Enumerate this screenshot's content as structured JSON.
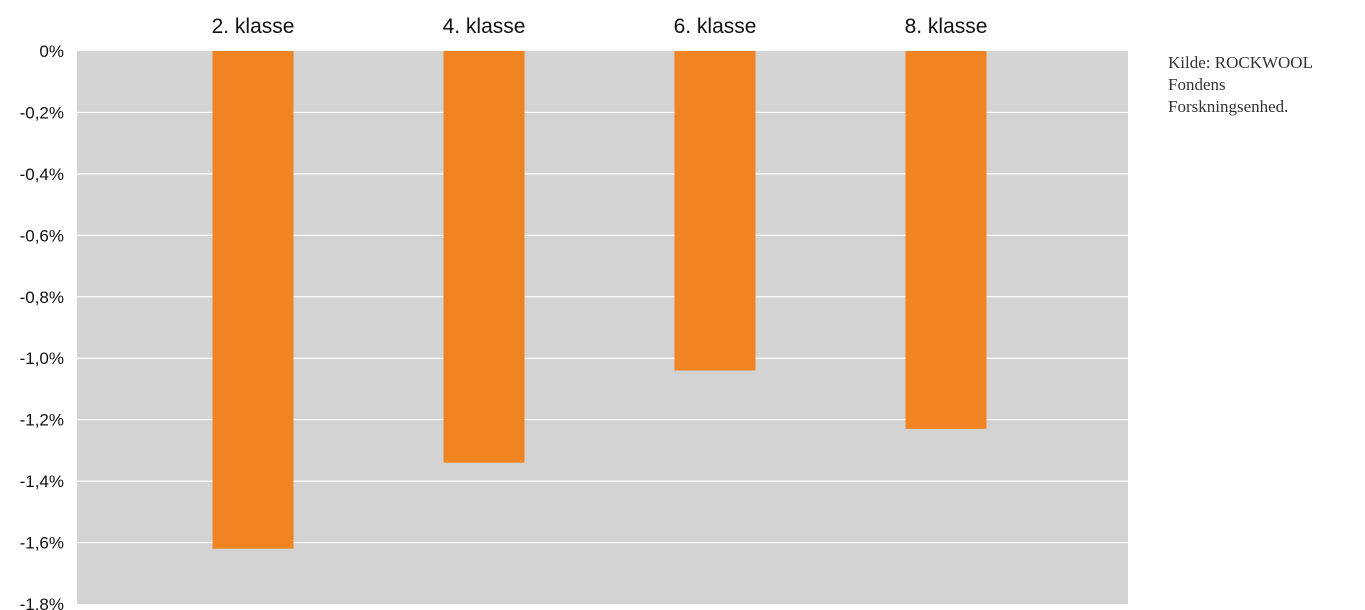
{
  "chart_data": {
    "type": "bar",
    "categories": [
      "2. klasse",
      "4. klasse",
      "6. klasse",
      "8. klasse"
    ],
    "values": [
      -1.62,
      -1.34,
      -1.04,
      -1.23
    ],
    "yticks": [
      0,
      -0.2,
      -0.4,
      -0.6,
      -0.8,
      -1.0,
      -1.2,
      -1.4,
      -1.6,
      -1.8
    ],
    "ytick_labels": [
      "0%",
      "-0,2%",
      "-0,4%",
      "-0,6%",
      "-0,8%",
      "-1,0%",
      "-1,2%",
      "-1,4%",
      "-1,6%",
      "-1,8%"
    ],
    "ylim": [
      -1.8,
      0
    ],
    "category_axis_position": "top",
    "grid": true,
    "colors": {
      "bar": "#F08423",
      "plot_background": "#D3D3D3",
      "gridline": "#FFFFFF"
    },
    "title": "",
    "xlabel": "",
    "ylabel": ""
  },
  "source": {
    "lines": [
      "Kilde: ROCKWOOL",
      "Fondens",
      "Forskningsenhed."
    ]
  }
}
